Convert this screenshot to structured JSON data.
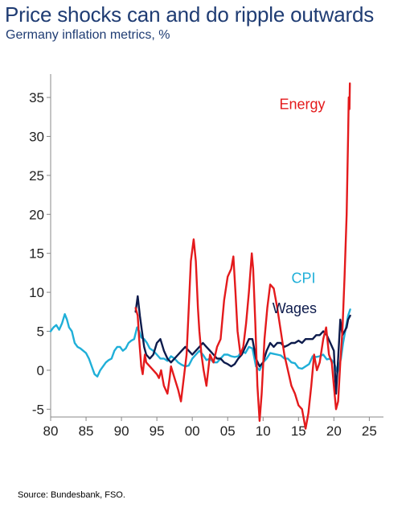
{
  "title": "Price shocks can and do ripple outwards",
  "subtitle": "Germany inflation metrics, %",
  "source": "Source: Bundesbank, FSO.",
  "chart_data": {
    "type": "line",
    "title": "Price shocks can and do ripple outwards",
    "subtitle": "Germany inflation metrics, %",
    "xlabel": "",
    "ylabel": "",
    "xlim": [
      1980,
      2027
    ],
    "ylim": [
      -6,
      38
    ],
    "x_ticks": [
      1980,
      1985,
      1990,
      1995,
      2000,
      2005,
      2010,
      2015,
      2020,
      2025
    ],
    "x_tick_labels": [
      "80",
      "85",
      "90",
      "95",
      "00",
      "05",
      "10",
      "15",
      "20",
      "25"
    ],
    "y_ticks": [
      -5,
      0,
      5,
      10,
      15,
      20,
      25,
      30,
      35
    ],
    "y_tick_labels": [
      "-5",
      "0",
      "5",
      "10",
      "15",
      "20",
      "25",
      "30",
      "35"
    ],
    "grid": false,
    "legend": "inline labels",
    "series": [
      {
        "name": "Energy",
        "color": "#e41a1c",
        "x": [
          1992.0,
          1992.3,
          1992.5,
          1992.8,
          1993.0,
          1993.3,
          1993.5,
          1994.0,
          1994.5,
          1995.0,
          1995.3,
          1995.6,
          1996.0,
          1996.5,
          1996.8,
          1997.0,
          1997.5,
          1998.0,
          1998.4,
          1998.8,
          1999.2,
          1999.5,
          1999.8,
          2000.2,
          2000.5,
          2000.8,
          2001.0,
          2001.3,
          2001.6,
          2002.0,
          2002.5,
          2003.0,
          2003.5,
          2004.0,
          2004.5,
          2005.0,
          2005.5,
          2005.8,
          2006.1,
          2006.4,
          2006.8,
          2007.2,
          2007.6,
          2008.0,
          2008.4,
          2008.6,
          2008.9,
          2009.2,
          2009.5,
          2009.8,
          2010.2,
          2010.6,
          2011.0,
          2011.5,
          2012.0,
          2012.5,
          2013.0,
          2013.5,
          2014.0,
          2014.5,
          2015.0,
          2015.5,
          2016.0,
          2016.4,
          2016.8,
          2017.2,
          2017.6,
          2018.0,
          2018.5,
          2018.9,
          2019.3,
          2019.7,
          2020.0,
          2020.3,
          2020.6,
          2020.9,
          2021.2,
          2021.5,
          2021.8,
          2022.0,
          2022.1,
          2022.2,
          2022.25
        ],
        "values": [
          8.0,
          7.0,
          4.0,
          0.5,
          -0.5,
          2.0,
          1.0,
          0.5,
          0.0,
          -0.5,
          -1.0,
          0.0,
          -2.0,
          -3.0,
          -1.0,
          0.5,
          -1.0,
          -2.5,
          -4.0,
          -1.0,
          2.0,
          8.0,
          14.0,
          16.8,
          14.0,
          8.0,
          5.0,
          2.0,
          0.0,
          -2.0,
          2.0,
          1.0,
          3.0,
          4.0,
          9.0,
          12.0,
          13.0,
          14.6,
          10.0,
          5.0,
          2.0,
          3.0,
          6.0,
          10.0,
          15.0,
          13.0,
          6.0,
          -2.0,
          -6.5,
          -3.0,
          4.0,
          8.0,
          11.0,
          10.5,
          8.0,
          5.0,
          2.0,
          0.0,
          -2.0,
          -3.0,
          -4.5,
          -5.0,
          -7.5,
          -5.5,
          -2.0,
          2.0,
          0.0,
          1.0,
          4.0,
          5.5,
          2.0,
          1.0,
          -2.0,
          -5.0,
          -4.0,
          1.0,
          5.0,
          12.0,
          20.0,
          30.0,
          35.0,
          33.5,
          36.8
        ]
      },
      {
        "name": "CPI",
        "color": "#1fafd8",
        "x": [
          1980.0,
          1980.4,
          1980.8,
          1981.2,
          1981.6,
          1982.0,
          1982.3,
          1982.6,
          1983.0,
          1983.4,
          1983.8,
          1984.2,
          1984.6,
          1985.0,
          1985.4,
          1985.8,
          1986.2,
          1986.6,
          1987.0,
          1987.4,
          1987.8,
          1988.2,
          1988.6,
          1989.0,
          1989.4,
          1989.8,
          1990.2,
          1990.6,
          1991.0,
          1991.4,
          1991.8,
          1992.2,
          1992.5,
          1992.8,
          1993.2,
          1993.6,
          1994.0,
          1994.5,
          1995.0,
          1995.5,
          1996.0,
          1996.5,
          1997.0,
          1997.5,
          1998.0,
          1998.5,
          1999.0,
          1999.5,
          2000.0,
          2000.5,
          2001.0,
          2001.5,
          2002.0,
          2002.5,
          2003.0,
          2003.5,
          2004.0,
          2004.5,
          2005.0,
          2005.5,
          2006.0,
          2006.5,
          2007.0,
          2007.5,
          2008.0,
          2008.5,
          2009.0,
          2009.5,
          2010.0,
          2010.5,
          2011.0,
          2011.5,
          2012.0,
          2012.5,
          2013.0,
          2013.5,
          2014.0,
          2014.5,
          2015.0,
          2015.5,
          2016.0,
          2016.5,
          2017.0,
          2017.5,
          2018.0,
          2018.5,
          2019.0,
          2019.5,
          2020.0,
          2020.5,
          2021.0,
          2021.3,
          2021.6,
          2022.0,
          2022.3
        ],
        "values": [
          5.0,
          5.5,
          5.8,
          5.2,
          6.0,
          7.2,
          6.5,
          5.5,
          5.0,
          3.5,
          3.0,
          2.8,
          2.5,
          2.2,
          1.5,
          0.5,
          -0.5,
          -0.8,
          0.0,
          0.5,
          1.0,
          1.3,
          1.5,
          2.5,
          3.0,
          3.0,
          2.5,
          2.8,
          3.5,
          3.8,
          4.0,
          5.5,
          5.0,
          4.2,
          4.0,
          3.5,
          2.8,
          2.5,
          2.0,
          1.5,
          1.5,
          1.2,
          1.8,
          1.5,
          1.0,
          0.7,
          0.5,
          0.6,
          1.5,
          2.0,
          2.5,
          2.0,
          1.3,
          1.5,
          1.0,
          1.0,
          1.5,
          2.0,
          2.0,
          1.8,
          1.7,
          1.8,
          2.5,
          2.2,
          3.0,
          2.8,
          0.5,
          0.0,
          1.0,
          1.5,
          2.2,
          2.1,
          2.0,
          1.9,
          1.5,
          1.5,
          1.0,
          0.9,
          0.3,
          0.2,
          0.5,
          0.8,
          1.8,
          1.7,
          1.8,
          2.0,
          1.4,
          1.5,
          1.0,
          -0.3,
          1.5,
          3.5,
          5.0,
          7.0,
          7.8
        ]
      },
      {
        "name": "Wages",
        "color": "#0d1b4c",
        "x": [
          1992.0,
          1992.3,
          1992.6,
          1992.9,
          1993.2,
          1993.5,
          1994.0,
          1994.5,
          1995.0,
          1995.5,
          1996.0,
          1996.5,
          1997.0,
          1997.5,
          1998.0,
          1998.5,
          1999.0,
          1999.5,
          2000.0,
          2000.5,
          2001.0,
          2001.5,
          2002.0,
          2002.5,
          2003.0,
          2003.5,
          2004.0,
          2004.5,
          2005.0,
          2005.5,
          2006.0,
          2006.5,
          2007.0,
          2007.5,
          2008.0,
          2008.5,
          2009.0,
          2009.5,
          2010.0,
          2010.5,
          2011.0,
          2011.5,
          2012.0,
          2012.5,
          2013.0,
          2013.5,
          2014.0,
          2014.5,
          2015.0,
          2015.5,
          2016.0,
          2016.5,
          2017.0,
          2017.5,
          2018.0,
          2018.5,
          2019.0,
          2019.5,
          2020.0,
          2020.3,
          2020.6,
          2020.9,
          2021.2,
          2021.5,
          2021.8,
          2022.0,
          2022.3
        ],
        "values": [
          7.5,
          9.5,
          7.0,
          5.0,
          3.0,
          2.0,
          1.5,
          2.0,
          3.5,
          4.0,
          2.5,
          1.5,
          1.0,
          1.5,
          2.0,
          2.5,
          3.0,
          2.5,
          2.0,
          2.5,
          3.0,
          3.5,
          3.0,
          2.5,
          2.0,
          1.5,
          1.5,
          1.0,
          0.8,
          0.5,
          0.8,
          1.5,
          2.0,
          3.0,
          4.0,
          4.0,
          1.5,
          0.5,
          1.0,
          2.5,
          3.5,
          3.0,
          3.5,
          3.5,
          3.0,
          3.2,
          3.5,
          3.5,
          3.8,
          3.5,
          4.0,
          4.0,
          4.0,
          4.5,
          4.5,
          5.0,
          4.5,
          3.5,
          2.5,
          -3.0,
          1.5,
          6.5,
          4.5,
          5.0,
          5.5,
          6.5,
          7.0
        ]
      }
    ],
    "annotations": [
      {
        "text": "Energy",
        "x": 2012.3,
        "y": 33.5,
        "color": "#e41a1c"
      },
      {
        "text": "CPI",
        "x": 2014.0,
        "y": 11.2,
        "color": "#1fafd8"
      },
      {
        "text": "Wages",
        "x": 2011.3,
        "y": 7.3,
        "color": "#0d1b4c"
      }
    ]
  }
}
